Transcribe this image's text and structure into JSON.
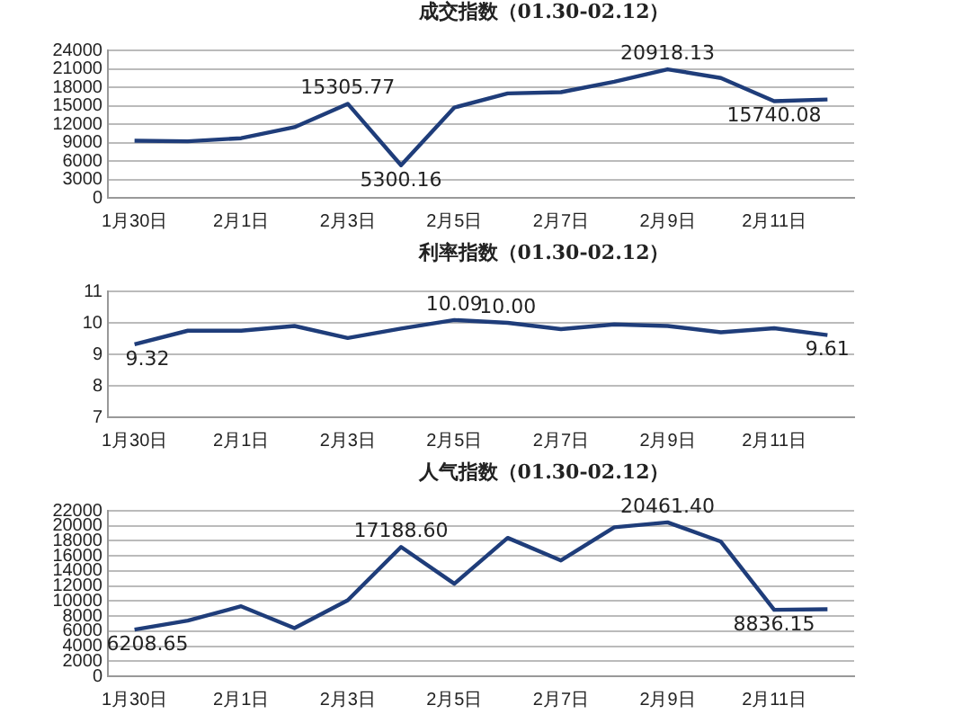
{
  "chart_data": [
    {
      "type": "line",
      "title": "成交指数（01.30-02.12）",
      "categories": [
        "1月30日",
        null,
        "2月1日",
        null,
        "2月3日",
        null,
        "2月5日",
        null,
        "2月7日",
        null,
        "2月9日",
        null,
        "2月11日",
        null
      ],
      "series": [
        {
          "color": "#1f3d7a",
          "values": [
            9300,
            9200,
            9700,
            11500,
            15305.77,
            5300.16,
            14700,
            17000,
            17200,
            18900,
            20918.13,
            19500,
            15740.08,
            16000
          ],
          "value_labels": [
            null,
            null,
            null,
            null,
            "15305.77",
            "5300.16",
            null,
            null,
            null,
            null,
            "20918.13",
            null,
            "15740.08",
            null
          ]
        }
      ],
      "ylim": [
        0,
        24000
      ],
      "yticks": [
        0,
        3000,
        6000,
        9000,
        12000,
        15000,
        18000,
        21000,
        24000
      ],
      "grid": "y",
      "legend": false,
      "marker": "none"
    },
    {
      "type": "line",
      "title": "利率指数（01.30-02.12）",
      "categories": [
        "1月30日",
        null,
        "2月1日",
        null,
        "2月3日",
        null,
        "2月5日",
        null,
        "2月7日",
        null,
        "2月9日",
        null,
        "2月11日",
        null
      ],
      "series": [
        {
          "color": "#1f3d7a",
          "values": [
            9.32,
            9.75,
            9.75,
            9.9,
            9.52,
            9.82,
            10.09,
            10.0,
            9.8,
            9.95,
            9.9,
            9.7,
            9.83,
            9.61
          ],
          "value_labels": [
            "9.32",
            null,
            null,
            null,
            null,
            null,
            "10.09",
            "10.00",
            null,
            null,
            null,
            null,
            null,
            "9.61"
          ]
        }
      ],
      "ylim": [
        7,
        11
      ],
      "yticks": [
        7,
        8,
        9,
        10,
        11
      ],
      "grid": "y",
      "legend": false,
      "marker": "none"
    },
    {
      "type": "line",
      "title": "人气指数（01.30-02.12）",
      "categories": [
        "1月30日",
        null,
        "2月1日",
        null,
        "2月3日",
        null,
        "2月5日",
        null,
        "2月7日",
        null,
        "2月9日",
        null,
        "2月11日",
        null
      ],
      "series": [
        {
          "color": "#1f3d7a",
          "values": [
            6208.65,
            7400,
            9300,
            6400,
            10100,
            17188.6,
            12300,
            18400,
            15400,
            19800,
            20461.4,
            17900,
            8836.15,
            8900
          ],
          "value_labels": [
            "6208.65",
            null,
            null,
            null,
            null,
            "17188.60",
            null,
            null,
            null,
            null,
            "20461.40",
            null,
            "8836.15",
            null
          ]
        }
      ],
      "ylim": [
        0,
        22000
      ],
      "yticks": [
        0,
        2000,
        4000,
        6000,
        8000,
        10000,
        12000,
        14000,
        16000,
        18000,
        20000,
        22000
      ],
      "grid": "y",
      "legend": false,
      "marker": "none"
    }
  ]
}
